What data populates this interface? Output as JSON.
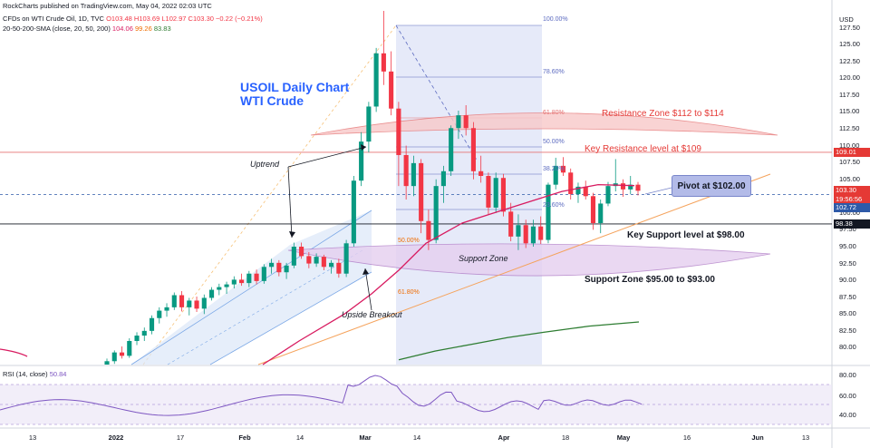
{
  "header": {
    "publisher": "RockCharts published on TradingView.com, May 04, 2022 02:03 UTC",
    "symbol_line": "CFDs on WTI Crude Oil, 1D, TVC",
    "ohlc": "O103.48  H103.69  L102.97  C103.30",
    "change": "−0.22 (−0.21%)",
    "sma_label": "20-50-200-SMA (close, 20, 50, 200)",
    "sma_values": [
      "104.06",
      "99.26",
      "83.83"
    ]
  },
  "chart_title": [
    "USOIL Daily Chart",
    "WTI Crude"
  ],
  "currency": "USD",
  "annotations": {
    "resistance_zone": "Resistance Zone $112 to $114",
    "key_resistance": "Key Resistance level at $109",
    "pivot": "Pivot at $102.00",
    "key_support": "Key Support level at $98.00",
    "support_zone_right": "Support Zone $95.00 to $93.00",
    "support_zone_inner": "Support Zone",
    "uptrend": "Uptrend",
    "upside_breakout": "Upside Breakout"
  },
  "fib_labels": [
    "100.00%",
    "78.60%",
    "61.80%",
    "50.00%",
    "38.20%",
    "23.60%",
    "50.00%",
    "61.80%"
  ],
  "price_tags": [
    {
      "text": "109.01",
      "color": "#e53935"
    },
    {
      "text": "103.30",
      "color": "#e53935"
    },
    {
      "text": "19:56:56",
      "color": "#e53935"
    },
    {
      "text": "102.72",
      "color": "#2e5aa8"
    },
    {
      "text": "98.38",
      "color": "#131722"
    }
  ],
  "rsi": {
    "label": "RSI (14, close)",
    "value": "50.84",
    "axis": [
      "80.00",
      "60.00",
      "40.00"
    ]
  },
  "colors": {
    "up": "#089981",
    "down": "#f23645",
    "sma20": "#d81b60",
    "sma50": "#ef6c00",
    "sma200": "#2e7d32",
    "accent": "#2962ff"
  },
  "chart_data": {
    "type": "candlestick",
    "y_axis": {
      "min": 77.5,
      "max": 130,
      "ticks": [
        "127.50",
        "125.00",
        "122.50",
        "120.00",
        "117.50",
        "115.00",
        "112.50",
        "110.00",
        "107.50",
        "105.00",
        "102.50",
        "100.00",
        "97.50",
        "95.00",
        "92.50",
        "90.00",
        "87.50",
        "85.00",
        "82.50",
        "80.00"
      ]
    },
    "x_axis": {
      "ticks": [
        "13",
        "2022",
        "17",
        "Feb",
        "14",
        "Mar",
        "14",
        "Apr",
        "18",
        "May",
        "16",
        "Jun",
        "13"
      ],
      "bold": [
        "2022",
        "Feb",
        "Mar",
        "Apr",
        "May",
        "Jun"
      ]
    },
    "candles_ohlc": [
      [
        77.5,
        78.4,
        76.9,
        78.0
      ],
      [
        78.0,
        79.6,
        77.6,
        79.3
      ],
      [
        79.3,
        80.2,
        78.4,
        78.8
      ],
      [
        78.8,
        81.4,
        78.5,
        81.0
      ],
      [
        81.0,
        82.3,
        80.4,
        81.8
      ],
      [
        81.8,
        83.0,
        81.0,
        82.5
      ],
      [
        82.5,
        84.8,
        82.0,
        84.4
      ],
      [
        84.4,
        86.0,
        83.6,
        85.5
      ],
      [
        85.5,
        86.6,
        84.6,
        86.0
      ],
      [
        86.0,
        88.2,
        85.6,
        87.8
      ],
      [
        87.8,
        88.4,
        85.4,
        86.0
      ],
      [
        86.0,
        87.4,
        84.8,
        87.0
      ],
      [
        87.0,
        87.6,
        85.3,
        85.8
      ],
      [
        85.8,
        87.9,
        85.0,
        87.4
      ],
      [
        87.4,
        89.0,
        87.0,
        88.6
      ],
      [
        88.6,
        89.5,
        87.8,
        89.0
      ],
      [
        89.0,
        89.8,
        88.0,
        89.4
      ],
      [
        89.4,
        90.6,
        88.8,
        90.1
      ],
      [
        90.1,
        91.0,
        89.2,
        89.6
      ],
      [
        89.6,
        91.4,
        89.0,
        91.0
      ],
      [
        91.0,
        91.6,
        89.4,
        89.9
      ],
      [
        89.9,
        92.4,
        89.5,
        92.0
      ],
      [
        92.0,
        93.2,
        91.0,
        92.6
      ],
      [
        92.6,
        93.0,
        90.6,
        91.2
      ],
      [
        91.2,
        92.6,
        90.2,
        92.2
      ],
      [
        92.2,
        95.6,
        91.8,
        95.0
      ],
      [
        95.0,
        95.6,
        93.2,
        93.6
      ],
      [
        93.6,
        94.2,
        91.8,
        92.5
      ],
      [
        92.5,
        94.0,
        92.0,
        93.5
      ],
      [
        93.5,
        93.8,
        91.5,
        92.0
      ],
      [
        92.0,
        93.0,
        91.0,
        92.6
      ],
      [
        92.6,
        93.2,
        90.4,
        91.0
      ],
      [
        91.0,
        96.0,
        90.5,
        95.5
      ],
      [
        95.5,
        105.5,
        95.0,
        104.8
      ],
      [
        104.8,
        112.0,
        104.0,
        110.6
      ],
      [
        110.6,
        116.5,
        109.0,
        115.8
      ],
      [
        115.8,
        124.5,
        115.0,
        123.7
      ],
      [
        123.7,
        130.3,
        119.0,
        121.0
      ],
      [
        121.0,
        124.0,
        114.5,
        115.5
      ],
      [
        115.5,
        116.5,
        104.0,
        108.6
      ],
      [
        108.6,
        110.0,
        102.0,
        104.0
      ],
      [
        104.0,
        108.5,
        102.5,
        107.4
      ],
      [
        107.4,
        108.0,
        97.0,
        98.8
      ],
      [
        98.8,
        100.5,
        94.5,
        96.0
      ],
      [
        96.0,
        105.0,
        95.5,
        104.0
      ],
      [
        104.0,
        107.0,
        101.5,
        106.2
      ],
      [
        106.2,
        113.0,
        105.5,
        112.6
      ],
      [
        112.6,
        115.2,
        111.0,
        114.5
      ],
      [
        114.5,
        116.0,
        111.5,
        112.6
      ],
      [
        112.6,
        113.5,
        105.0,
        106.2
      ],
      [
        106.2,
        108.5,
        104.5,
        105.5
      ],
      [
        105.5,
        106.0,
        99.8,
        100.8
      ],
      [
        100.8,
        106.0,
        100.0,
        105.2
      ],
      [
        105.2,
        105.8,
        99.5,
        100.2
      ],
      [
        100.2,
        101.5,
        95.8,
        96.5
      ],
      [
        96.5,
        99.8,
        94.5,
        98.2
      ],
      [
        98.2,
        99.0,
        94.8,
        95.5
      ],
      [
        95.5,
        99.0,
        95.0,
        98.0
      ],
      [
        98.0,
        99.5,
        95.4,
        96.0
      ],
      [
        96.0,
        104.5,
        95.5,
        104.2
      ],
      [
        104.2,
        108.2,
        103.5,
        107.0
      ],
      [
        107.0,
        108.3,
        105.5,
        106.0
      ],
      [
        106.0,
        106.6,
        102.0,
        102.8
      ],
      [
        102.8,
        104.5,
        101.5,
        103.9
      ],
      [
        103.9,
        104.8,
        102.0,
        102.5
      ],
      [
        102.5,
        103.0,
        97.5,
        98.5
      ],
      [
        98.5,
        102.0,
        97.0,
        101.4
      ],
      [
        101.4,
        104.6,
        101.0,
        104.0
      ],
      [
        104.0,
        108.0,
        103.2,
        104.4
      ],
      [
        104.4,
        105.0,
        102.4,
        103.5
      ],
      [
        103.5,
        105.5,
        102.8,
        104.2
      ],
      [
        104.2,
        104.6,
        102.6,
        103.3
      ]
    ]
  }
}
